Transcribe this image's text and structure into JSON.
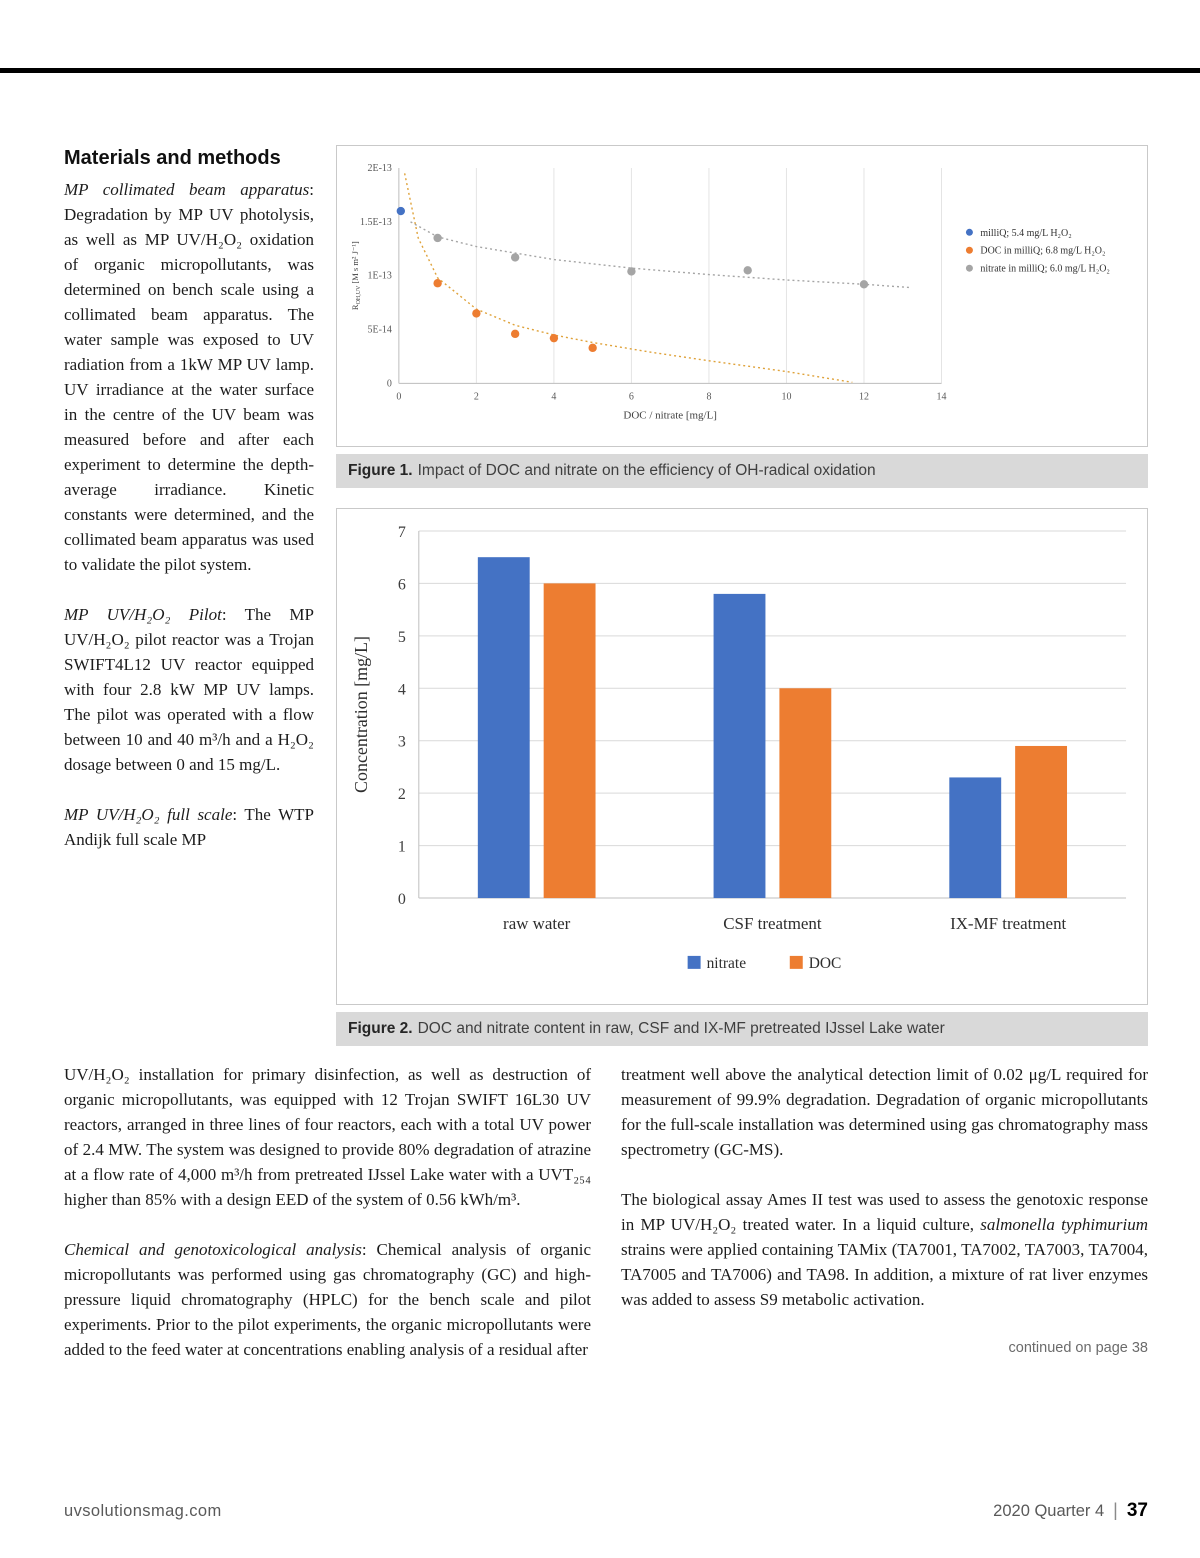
{
  "article": {
    "heading": "Materials and methods",
    "left_paragraphs": [
      {
        "lead": "MP collimated beam apparatus",
        "rest": ": Degradation by MP UV photolysis, as well as MP UV/H₂O₂ oxidation of organic micropollutants, was determined on bench scale using a collimated beam apparatus. The water sample was exposed to UV radiation from a 1kW MP UV lamp. UV irradiance at the water surface in the centre of the UV beam was measured before and after each experiment to determine the depth-average irradiance. Kinetic constants were determined, and the collimated beam apparatus was used to validate the pilot system."
      },
      {
        "lead": "MP UV/H₂O₂ Pilot",
        "rest": ": The MP UV/H₂O₂ pilot reactor was a Trojan SWIFT4L12 UV reactor equipped with four 2.8 kW MP UV lamps. The pilot was operated with a flow between 10 and 40 m³/h and a H₂O₂ dosage between 0 and 15 mg/L."
      },
      {
        "lead": "MP UV/H₂O₂ full scale",
        "rest": ": The WTP Andijk full scale MP"
      }
    ],
    "continuation": "UV/H₂O₂ installation for primary disinfection, as well as destruction of organic micropollutants, was equipped with 12 Trojan SWIFT 16L30 UV reactors, arranged in three lines of four reactors, each with a total UV power of 2.4 MW. The system was designed to provide 80% degradation of atrazine at a flow rate of 4,000 m³/h from pretreated IJssel Lake water with a UVT₂₅₄ higher than 85% with a design EED of the system of 0.56 kWh/m³.",
    "chem": {
      "lead": "Chemical and genotoxicological analysis",
      "rest": ": Chemical analysis of organic micropollutants was performed using gas chromatography (GC) and high-pressure liquid chromatography (HPLC) for the bench scale and pilot experiments. Prior to the pilot experiments, the organic micropollutants were added to the feed water at concentrations enabling analysis of a residual after"
    },
    "right_paragraphs": {
      "p1": "treatment well above the analytical detection limit of 0.02 μg/L required for measurement of 99.9% degradation. Degradation of organic micropollutants for the full-scale installation was determined using gas chromatography mass spectrometry (GC-MS).",
      "p2_before": "The biological assay Ames II test was used to assess the genotoxic response in MP UV/H₂O₂ treated water. In a liquid culture, ",
      "p2_italic": "salmonella typhimurium",
      "p2_after": " strains were applied containing TAMix (TA7001, TA7002, TA7003, TA7004, TA7005 and TA7006) and TA98. In addition, a mixture of rat liver enzymes was added to assess S9 metabolic activation."
    },
    "continued_note": "continued on page 38"
  },
  "figures": {
    "fig1": {
      "label": "Figure 1.",
      "caption": "Impact of DOC and nitrate on the efficiency of OH-radical oxidation"
    },
    "fig2": {
      "label": "Figure 2.",
      "caption": "DOC and nitrate content in raw, CSF and IX-MF pretreated IJssel Lake water"
    }
  },
  "chart_data": [
    {
      "type": "scatter",
      "xlabel": "DOC / nitrate [mg/L]",
      "ylabel_r": "R",
      "ylabel_sub": "OH,UV",
      "ylabel_units": " [M s m² J⁻¹]",
      "xlim": [
        0,
        14
      ],
      "xticks": [
        0,
        2,
        4,
        6,
        8,
        10,
        12,
        14
      ],
      "ylim": [
        0,
        2e-13
      ],
      "yticks": [
        {
          "v": 0,
          "label": "0"
        },
        {
          "v": 5e-14,
          "label": "5E-14"
        },
        {
          "v": 1e-13,
          "label": "1E-13"
        },
        {
          "v": 1.5e-13,
          "label": "1.5E-13"
        },
        {
          "v": 2e-13,
          "label": "2E-13"
        }
      ],
      "legend_position": "right",
      "grid": "vertical",
      "series": [
        {
          "name": "milliQ; 5.4 mg/L H₂O₂",
          "color": "#4472c4",
          "points": [
            [
              0.05,
              1.6e-13
            ]
          ]
        },
        {
          "name": "DOC in milliQ; 6.8 mg/L H₂O₂",
          "color": "#ed7d31",
          "points": [
            [
              1,
              9.3e-14
            ],
            [
              2,
              6.5e-14
            ],
            [
              3,
              4.6e-14
            ],
            [
              4,
              4.2e-14
            ],
            [
              5,
              3.3e-14
            ]
          ]
        },
        {
          "name": "nitrate in milliQ; 6.0 mg/L H₂O₂",
          "color": "#a5a5a5",
          "points": [
            [
              1,
              1.35e-13
            ],
            [
              3,
              1.17e-13
            ],
            [
              6,
              1.04e-13
            ],
            [
              9,
              1.05e-13
            ],
            [
              12,
              9.2e-14
            ]
          ]
        }
      ],
      "trendlines": [
        {
          "color": "#dfa23a",
          "points": [
            [
              0.15,
              1.95e-13
            ],
            [
              0.5,
              1.35e-13
            ],
            [
              1,
              9.8e-14
            ],
            [
              2,
              6.9e-14
            ],
            [
              3,
              5.4e-14
            ],
            [
              4,
              4.5e-14
            ],
            [
              5,
              3.8e-14
            ],
            [
              6.5,
              2.9e-14
            ],
            [
              8,
              2.1e-14
            ],
            [
              10,
              1.1e-14
            ],
            [
              11.7,
              1e-15
            ]
          ]
        },
        {
          "color": "#a5a5a5",
          "points": [
            [
              0.3,
              1.5e-13
            ],
            [
              1,
              1.36e-13
            ],
            [
              2,
              1.27e-13
            ],
            [
              4,
              1.15e-13
            ],
            [
              6,
              1.07e-13
            ],
            [
              8,
              1.01e-13
            ],
            [
              10,
              9.6e-14
            ],
            [
              12,
              9.2e-14
            ],
            [
              13.2,
              8.9e-14
            ]
          ]
        }
      ]
    },
    {
      "type": "bar",
      "categories": [
        "raw water",
        "CSF treatment",
        "IX-MF treatment"
      ],
      "series": [
        {
          "name": "nitrate",
          "color": "#4472c4",
          "values": [
            6.5,
            5.8,
            2.3
          ]
        },
        {
          "name": "DOC",
          "color": "#ed7d31",
          "values": [
            6.0,
            4.0,
            2.9
          ]
        }
      ],
      "ylabel": "Concentration [mg/L]",
      "ylim": [
        0,
        7
      ],
      "yticks": [
        0,
        1,
        2,
        3,
        4,
        5,
        6,
        7
      ],
      "grid": "horizontal",
      "legend_position": "bottom"
    }
  ],
  "footer": {
    "site": "uvsolutionsmag.com",
    "issue": "2020 Quarter 4",
    "separator": "|",
    "page": "37"
  }
}
